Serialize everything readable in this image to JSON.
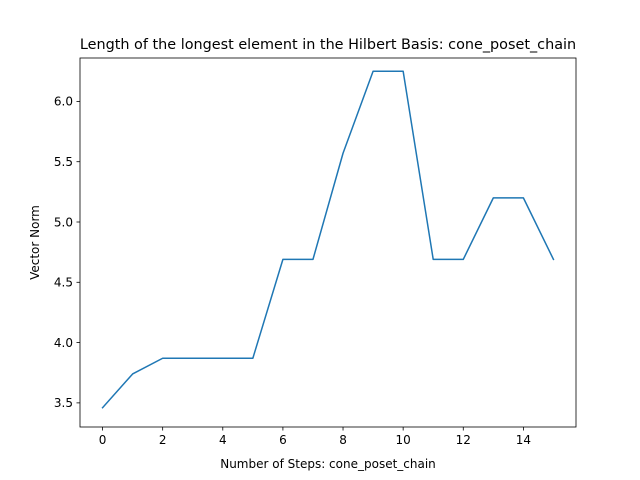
{
  "chart_data": {
    "type": "line",
    "title": "Length of the longest element in the Hilbert Basis: cone_poset_chain",
    "xlabel": "Number of Steps: cone_poset_chain",
    "ylabel": "Vector Norm",
    "x": [
      0,
      1,
      2,
      3,
      4,
      5,
      6,
      7,
      8,
      9,
      10,
      11,
      12,
      13,
      14,
      15
    ],
    "series": [
      {
        "values": [
          3.46,
          3.74,
          3.87,
          3.87,
          3.87,
          3.87,
          4.69,
          4.69,
          5.57,
          6.25,
          6.25,
          4.69,
          4.69,
          5.2,
          5.2,
          4.69
        ]
      }
    ],
    "xlim": [
      -0.75,
      15.75
    ],
    "ylim": [
      3.3,
      6.36
    ],
    "xticks": [
      "0",
      "2",
      "4",
      "6",
      "8",
      "10",
      "12",
      "14"
    ],
    "yticks": [
      "3.5",
      "4.0",
      "4.5",
      "5.0",
      "5.5",
      "6.0"
    ],
    "grid": false,
    "line_color": "#1f77b4"
  }
}
